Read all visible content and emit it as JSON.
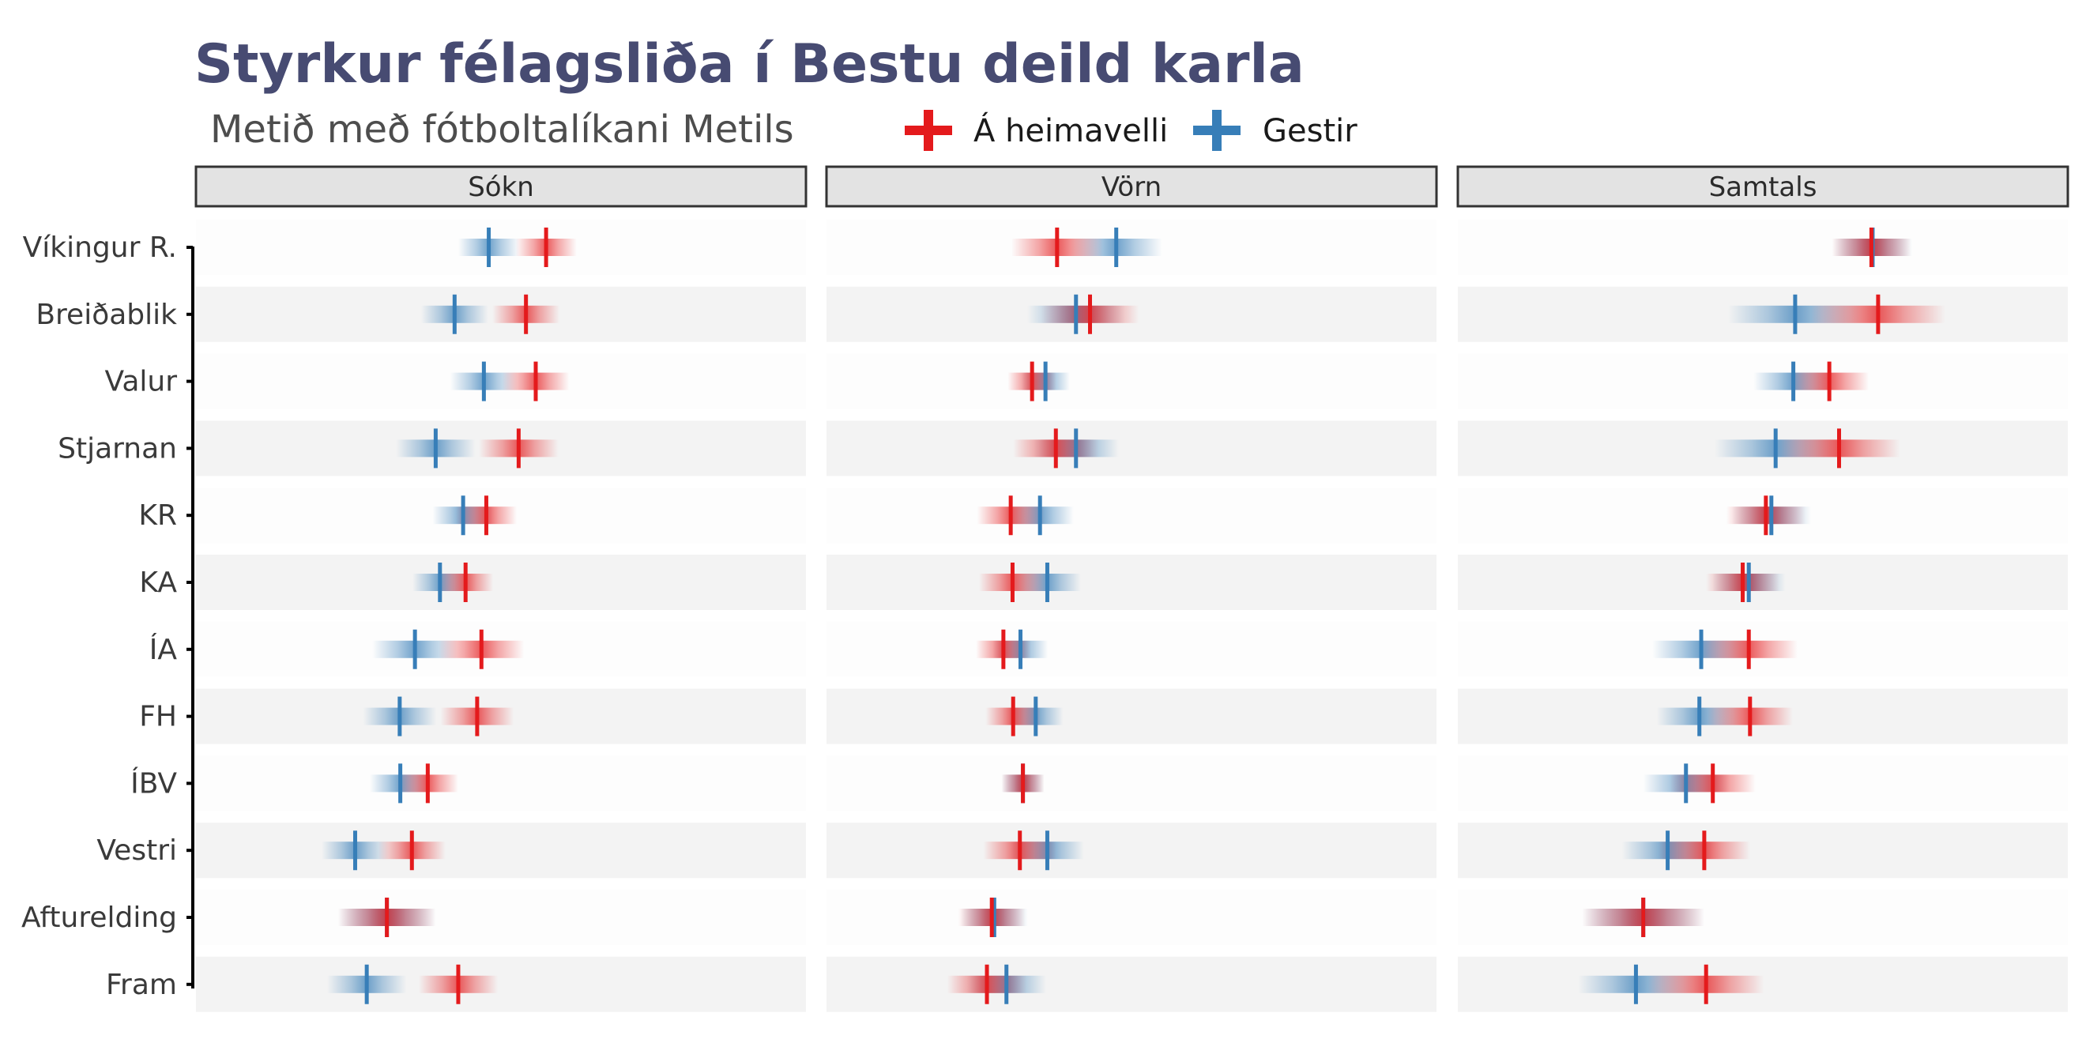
{
  "chart_data": {
    "type": "scatter",
    "title": "Styrkur félagsliða í Bestu deild karla",
    "subtitle": "Metið með fótboltalíkani Metils",
    "legend": {
      "placement": "top",
      "entries": [
        {
          "key": "home",
          "label": "Á heimavelli",
          "color": "#e41a1c"
        },
        {
          "key": "away",
          "label": "Gestir",
          "color": "#377eb8"
        }
      ]
    },
    "panels": [
      "Sókn",
      "Vörn",
      "Samtals"
    ],
    "categories": [
      "Víkingur R.",
      "Breiðablik",
      "Valur",
      "Stjarnan",
      "KR",
      "KA",
      "ÍA",
      "FH",
      "ÍBV",
      "Vestri",
      "Afturelding",
      "Fram"
    ],
    "xlim": [
      0,
      1
    ],
    "grid": "alternating row bands",
    "series": [
      {
        "key": "home",
        "name": "Á heimavelli",
        "values": {
          "Sókn": [
            0.574,
            0.541,
            0.557,
            0.529,
            0.476,
            0.442,
            0.468,
            0.461,
            0.38,
            0.354,
            0.313,
            0.43
          ],
          "Vörn": [
            0.378,
            0.432,
            0.337,
            0.376,
            0.302,
            0.305,
            0.29,
            0.306,
            0.322,
            0.317,
            0.271,
            0.263
          ],
          "Samtals": [
            0.678,
            0.689,
            0.609,
            0.625,
            0.505,
            0.467,
            0.477,
            0.479,
            0.418,
            0.404,
            0.304,
            0.407
          ]
        }
      },
      {
        "key": "away",
        "name": "Gestir",
        "values": {
          "Sókn": [
            0.48,
            0.424,
            0.472,
            0.393,
            0.438,
            0.4,
            0.359,
            0.334,
            0.335,
            0.261,
            0.313,
            0.28
          ],
          "Vörn": [
            0.475,
            0.409,
            0.359,
            0.409,
            0.35,
            0.362,
            0.318,
            0.343,
            0.322,
            0.362,
            0.275,
            0.295
          ],
          "Samtals": [
            0.68,
            0.553,
            0.55,
            0.521,
            0.514,
            0.477,
            0.399,
            0.396,
            0.374,
            0.344,
            0.304,
            0.292
          ]
        }
      }
    ],
    "spread": {
      "Sókn": [
        0.1,
        0.11,
        0.11,
        0.13,
        0.1,
        0.09,
        0.14,
        0.12,
        0.1,
        0.11,
        0.16,
        0.13
      ],
      "Vörn": [
        0.15,
        0.16,
        0.08,
        0.14,
        0.11,
        0.11,
        0.09,
        0.09,
        0.07,
        0.12,
        0.11,
        0.13
      ],
      "Samtals": [
        0.13,
        0.22,
        0.13,
        0.2,
        0.13,
        0.12,
        0.16,
        0.14,
        0.14,
        0.15,
        0.2,
        0.19
      ]
    }
  }
}
